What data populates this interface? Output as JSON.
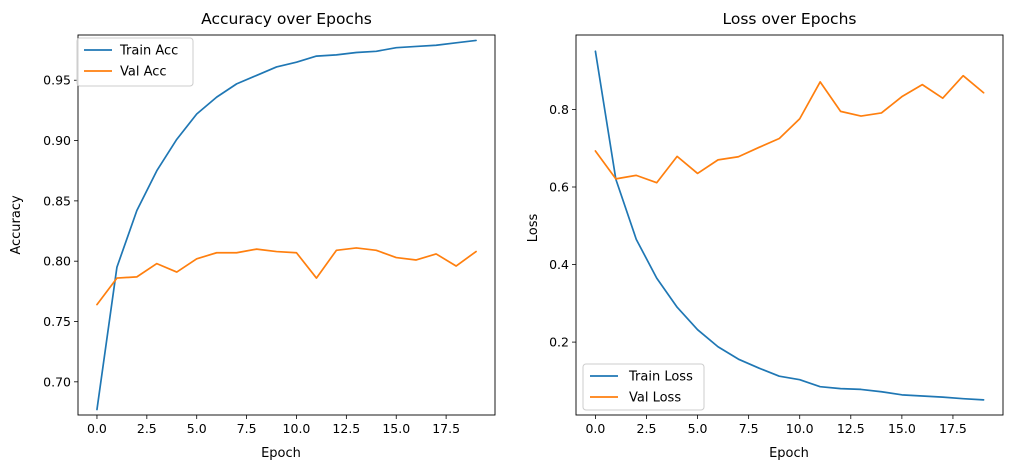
{
  "chart_data": [
    {
      "type": "line",
      "title": "Accuracy over Epochs",
      "xlabel": "Epoch",
      "ylabel": "Accuracy",
      "xlim": [
        -0.95,
        19.95
      ],
      "ylim": [
        0.6725,
        0.9875
      ],
      "xticks": [
        0.0,
        2.5,
        5.0,
        7.5,
        10.0,
        12.5,
        15.0,
        17.5
      ],
      "xtick_labels": [
        "0.0",
        "2.5",
        "5.0",
        "7.5",
        "10.0",
        "12.5",
        "15.0",
        "17.5"
      ],
      "yticks": [
        0.7,
        0.75,
        0.8,
        0.85,
        0.9,
        0.95
      ],
      "ytick_labels": [
        "0.70",
        "0.75",
        "0.80",
        "0.85",
        "0.90",
        "0.95"
      ],
      "legend_position": "upper-left",
      "grid": false,
      "x": [
        0,
        1,
        2,
        3,
        4,
        5,
        6,
        7,
        8,
        9,
        10,
        11,
        12,
        13,
        14,
        15,
        16,
        17,
        18,
        19
      ],
      "series": [
        {
          "name": "Train Acc",
          "color": "#1f77b4",
          "values": [
            0.677,
            0.795,
            0.842,
            0.875,
            0.901,
            0.922,
            0.936,
            0.947,
            0.954,
            0.961,
            0.965,
            0.97,
            0.971,
            0.973,
            0.974,
            0.977,
            0.978,
            0.979,
            0.981,
            0.983
          ]
        },
        {
          "name": "Val Acc",
          "color": "#ff7f0e",
          "values": [
            0.764,
            0.786,
            0.787,
            0.798,
            0.791,
            0.802,
            0.807,
            0.807,
            0.81,
            0.808,
            0.807,
            0.786,
            0.809,
            0.811,
            0.809,
            0.803,
            0.801,
            0.806,
            0.796,
            0.808
          ]
        }
      ]
    },
    {
      "type": "line",
      "title": "Loss over Epochs",
      "xlabel": "Epoch",
      "ylabel": "Loss",
      "xlim": [
        -0.95,
        19.95
      ],
      "ylim": [
        0.012,
        0.992
      ],
      "xticks": [
        0.0,
        2.5,
        5.0,
        7.5,
        10.0,
        12.5,
        15.0,
        17.5
      ],
      "xtick_labels": [
        "0.0",
        "2.5",
        "5.0",
        "7.5",
        "10.0",
        "12.5",
        "15.0",
        "17.5"
      ],
      "yticks": [
        0.2,
        0.4,
        0.6,
        0.8
      ],
      "ytick_labels": [
        "0.2",
        "0.4",
        "0.6",
        "0.8"
      ],
      "legend_position": "lower-left",
      "grid": false,
      "x": [
        0,
        1,
        2,
        3,
        4,
        5,
        6,
        7,
        8,
        9,
        10,
        11,
        12,
        13,
        14,
        15,
        16,
        17,
        18,
        19
      ],
      "series": [
        {
          "name": "Train Loss",
          "color": "#1f77b4",
          "values": [
            0.95,
            0.62,
            0.465,
            0.365,
            0.29,
            0.232,
            0.188,
            0.156,
            0.133,
            0.112,
            0.103,
            0.085,
            0.08,
            0.078,
            0.072,
            0.064,
            0.061,
            0.058,
            0.054,
            0.051
          ]
        },
        {
          "name": "Val Loss",
          "color": "#ff7f0e",
          "values": [
            0.693,
            0.621,
            0.63,
            0.611,
            0.679,
            0.635,
            0.67,
            0.678,
            0.702,
            0.725,
            0.776,
            0.871,
            0.795,
            0.783,
            0.791,
            0.833,
            0.864,
            0.829,
            0.887,
            0.843
          ]
        }
      ]
    }
  ]
}
